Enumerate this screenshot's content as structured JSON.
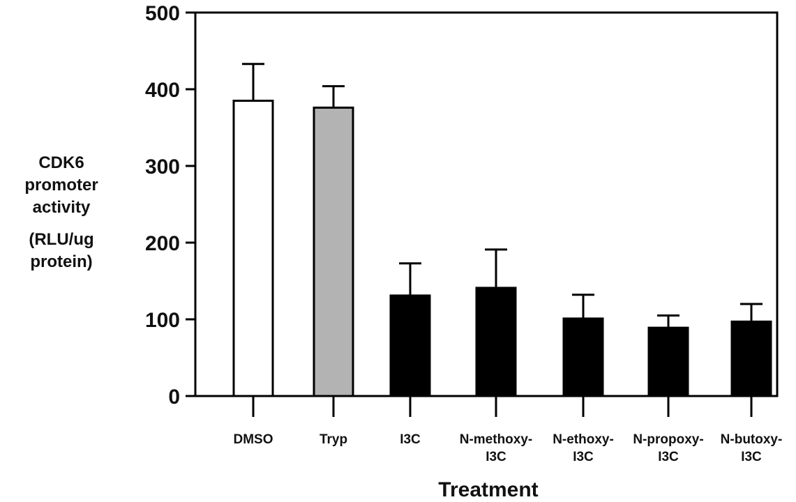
{
  "chart_data": {
    "type": "bar",
    "title": "",
    "ylabel_lines": [
      "CDK6",
      "promoter",
      "activity",
      "(RLU/ug",
      "protein)"
    ],
    "xlabel": "Treatment",
    "categories": [
      [
        "DMSO"
      ],
      [
        "Tryp"
      ],
      [
        "I3C"
      ],
      [
        "N-methoxy-",
        "I3C"
      ],
      [
        "N-ethoxy-",
        "I3C"
      ],
      [
        "N-propoxy-",
        "I3C"
      ],
      [
        "N-butoxy-",
        "I3C"
      ]
    ],
    "values": [
      385,
      376,
      131,
      141,
      101,
      89,
      97
    ],
    "errors": [
      48,
      28,
      42,
      50,
      31,
      16,
      23
    ],
    "bar_colors": [
      "#ffffff",
      "#b3b3b3",
      "#000000",
      "#000000",
      "#000000",
      "#000000",
      "#000000"
    ],
    "ylim": [
      0,
      500
    ],
    "yticks": [
      0,
      100,
      200,
      300,
      400,
      500
    ],
    "grid": false,
    "legend": "none"
  }
}
